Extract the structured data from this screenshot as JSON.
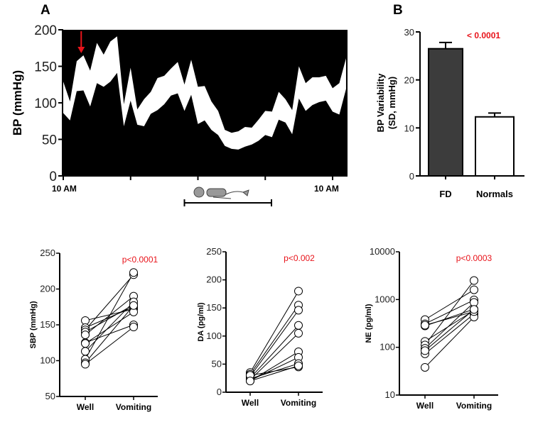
{
  "panels": {
    "a": "A",
    "b": "B"
  },
  "chart_data": [
    {
      "type": "area",
      "id": "bp",
      "title": "",
      "ylabel": "BP (mmHg)",
      "ylim": [
        0,
        200
      ],
      "yticks": [
        0,
        50,
        100,
        150,
        200
      ],
      "xlabels": [
        "10 AM",
        "10 AM"
      ],
      "x_hours_step": 0.6,
      "upper": [
        129,
        102,
        157,
        165,
        144,
        182,
        166,
        184,
        191,
        98,
        148,
        91,
        105,
        115,
        134,
        137,
        147,
        156,
        125,
        159,
        122,
        123,
        102,
        89,
        63,
        59,
        61,
        67,
        66,
        77,
        89,
        88,
        115,
        105,
        90,
        150,
        127,
        135,
        135,
        137,
        120,
        127,
        161
      ],
      "lower": [
        86,
        76,
        116,
        117,
        95,
        127,
        122,
        129,
        141,
        68,
        103,
        70,
        68,
        85,
        90,
        98,
        110,
        113,
        89,
        111,
        71,
        76,
        63,
        56,
        41,
        37,
        36,
        40,
        43,
        48,
        56,
        53,
        77,
        73,
        57,
        106,
        89,
        97,
        101,
        103,
        88,
        84,
        119
      ],
      "annotation": "red arrow at ~1.6 h",
      "sleep_period_hours": [
        12,
        25
      ],
      "arrow_color": "#e8141b"
    },
    {
      "type": "bar",
      "id": "bpv",
      "ylabel": [
        "BP Variability",
        "(SD, mmHg)"
      ],
      "ylim": [
        0,
        30
      ],
      "yticks": [
        0,
        10,
        20,
        30
      ],
      "categories": [
        "FD",
        "Normals"
      ],
      "values": [
        26.5,
        12.3
      ],
      "errors": [
        1.3,
        0.8
      ],
      "colors": [
        "#3c3c3c",
        "#ffffff"
      ],
      "pvalue": "< 0.0001"
    },
    {
      "type": "line",
      "id": "sbp",
      "ylabel": "SBP (mmHg)",
      "ylim": [
        50,
        250
      ],
      "yticks": [
        50,
        100,
        150,
        200,
        250
      ],
      "log": false,
      "categories": [
        "Well",
        "Vomiting"
      ],
      "pvalue": "p<0.0001",
      "well": [
        156,
        146,
        143,
        140,
        136,
        125,
        124,
        113,
        102,
        97,
        95
      ],
      "vomiting": [
        172,
        175,
        220,
        178,
        190,
        150,
        168,
        182,
        223,
        177,
        147
      ]
    },
    {
      "type": "line",
      "id": "da",
      "ylabel": "DA (pg/ml)",
      "ylim": [
        0,
        250
      ],
      "yticks": [
        0,
        50,
        100,
        150,
        200,
        250
      ],
      "log": false,
      "categories": [
        "Well",
        "Vomiting"
      ],
      "pvalue": "p<0.002",
      "well": [
        35,
        32,
        28,
        25,
        22,
        20,
        21,
        24,
        30,
        20
      ],
      "vomiting": [
        180,
        155,
        146,
        119,
        105,
        72,
        62,
        51,
        45,
        47
      ]
    },
    {
      "type": "line",
      "id": "ne",
      "ylabel": "NE (pg/ml)",
      "ylim": [
        10,
        10000
      ],
      "yticks": [
        10,
        100,
        1000,
        10000
      ],
      "log": true,
      "categories": [
        "Well",
        "Vomiting"
      ],
      "pvalue": "p<0.0003",
      "well": [
        380,
        310,
        280,
        133,
        112,
        95,
        73,
        38,
        290,
        85
      ],
      "vomiting": [
        1600,
        980,
        630,
        590,
        2500,
        870,
        500,
        430,
        560,
        620
      ]
    }
  ],
  "colors": {
    "pvalue": "#e8141b"
  }
}
